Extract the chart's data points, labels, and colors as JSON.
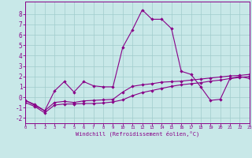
{
  "xlabel": "Windchill (Refroidissement éolien,°C)",
  "background_color": "#c8e8e8",
  "grid_color": "#a0cccc",
  "line_color": "#880088",
  "xlim": [
    0,
    23
  ],
  "ylim": [
    -2.5,
    9.2
  ],
  "xticks": [
    0,
    1,
    2,
    3,
    4,
    5,
    6,
    7,
    8,
    9,
    10,
    11,
    12,
    13,
    14,
    15,
    16,
    17,
    18,
    19,
    20,
    21,
    22,
    23
  ],
  "yticks": [
    -2,
    -1,
    0,
    1,
    2,
    3,
    4,
    5,
    6,
    7,
    8
  ],
  "curve_main_x": [
    0,
    1,
    2,
    3,
    4,
    5,
    6,
    7,
    8,
    9,
    10,
    11,
    12,
    13,
    14,
    15,
    16,
    17,
    18,
    19,
    20,
    21,
    22,
    23
  ],
  "curve_main_y": [
    -0.3,
    -0.8,
    -1.3,
    0.6,
    1.5,
    0.5,
    1.5,
    1.1,
    1.0,
    1.0,
    4.8,
    6.5,
    8.4,
    7.5,
    7.5,
    6.6,
    2.5,
    2.2,
    1.0,
    -0.3,
    -0.2,
    1.8,
    2.0,
    1.8
  ],
  "curve_mid_x": [
    0,
    1,
    2,
    3,
    4,
    5,
    6,
    7,
    8,
    9,
    10,
    11,
    12,
    13,
    14,
    15,
    16,
    17,
    18,
    19,
    20,
    21,
    22,
    23
  ],
  "curve_mid_y": [
    -0.3,
    -0.7,
    -1.3,
    -0.5,
    -0.4,
    -0.5,
    -0.35,
    -0.3,
    -0.25,
    -0.2,
    0.5,
    1.05,
    1.2,
    1.3,
    1.45,
    1.5,
    1.55,
    1.65,
    1.75,
    1.85,
    1.95,
    2.05,
    2.1,
    2.2
  ],
  "curve_low_x": [
    0,
    1,
    2,
    3,
    4,
    5,
    6,
    7,
    8,
    9,
    10,
    11,
    12,
    13,
    14,
    15,
    16,
    17,
    18,
    19,
    20,
    21,
    22,
    23
  ],
  "curve_low_y": [
    -0.5,
    -0.9,
    -1.5,
    -0.75,
    -0.65,
    -0.65,
    -0.6,
    -0.6,
    -0.55,
    -0.45,
    -0.25,
    0.15,
    0.45,
    0.65,
    0.85,
    1.05,
    1.2,
    1.3,
    1.4,
    1.55,
    1.65,
    1.8,
    1.9,
    2.0
  ]
}
